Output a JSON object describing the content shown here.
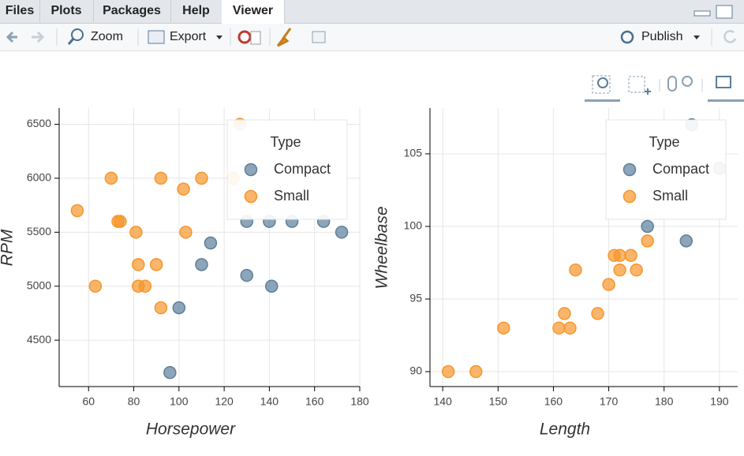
{
  "tabs": [
    "Files",
    "Plots",
    "Packages",
    "Help",
    "Viewer"
  ],
  "toolbar": {
    "zoom": "Zoom",
    "export": "Export",
    "publish": "Publish"
  },
  "chart_data": [
    {
      "type": "scatter",
      "x_label": "Horsepower",
      "y_label": "RPM",
      "xlim": [
        47,
        180
      ],
      "ylim": [
        4070,
        6650
      ],
      "xticks": [
        60,
        80,
        100,
        120,
        140,
        160,
        180
      ],
      "yticks": [
        4500,
        5000,
        5500,
        6000,
        6500
      ],
      "grid": true,
      "legend": {
        "title": "Type",
        "position": "top_right"
      },
      "series": [
        {
          "name": "Compact",
          "color": "#5d7f9b",
          "x": [
            96,
            100,
            110,
            114,
            130,
            141,
            130,
            140,
            150,
            164,
            172
          ],
          "y": [
            4200,
            4800,
            5200,
            5400,
            5100,
            5000,
            5600,
            5600,
            5600,
            5600,
            5500
          ]
        },
        {
          "name": "Small",
          "color": "#f7962b",
          "x": [
            55,
            63,
            70,
            73,
            74,
            81,
            82,
            82,
            85,
            90,
            92,
            92,
            102,
            103,
            110,
            127,
            124
          ],
          "y": [
            5700,
            5000,
            6000,
            5600,
            5600,
            5500,
            5200,
            5000,
            5000,
            5200,
            6000,
            4800,
            5900,
            5500,
            6000,
            6500,
            6000
          ]
        }
      ]
    },
    {
      "type": "scatter",
      "x_label": "Length",
      "y_label": "Wheelbase",
      "xlim": [
        137.7,
        193.3
      ],
      "ylim": [
        88.97,
        108.15
      ],
      "xticks": [
        140,
        150,
        160,
        170,
        180,
        190
      ],
      "yticks": [
        90,
        95,
        100,
        105
      ],
      "grid": true,
      "legend": {
        "title": "Type",
        "position": "top_right"
      },
      "series": [
        {
          "name": "Compact",
          "color": "#5d7f9b",
          "x": [
            177,
            184,
            185,
            190
          ],
          "y": [
            100,
            99,
            107,
            104
          ]
        },
        {
          "name": "Small",
          "color": "#f7962b",
          "x": [
            141,
            146,
            151,
            161,
            162,
            163,
            164,
            168,
            170,
            171,
            172,
            172,
            174,
            175,
            177
          ],
          "y": [
            90,
            90,
            93,
            93,
            94,
            93,
            97,
            94,
            96,
            98,
            98,
            97,
            98,
            97,
            99
          ]
        }
      ]
    }
  ]
}
